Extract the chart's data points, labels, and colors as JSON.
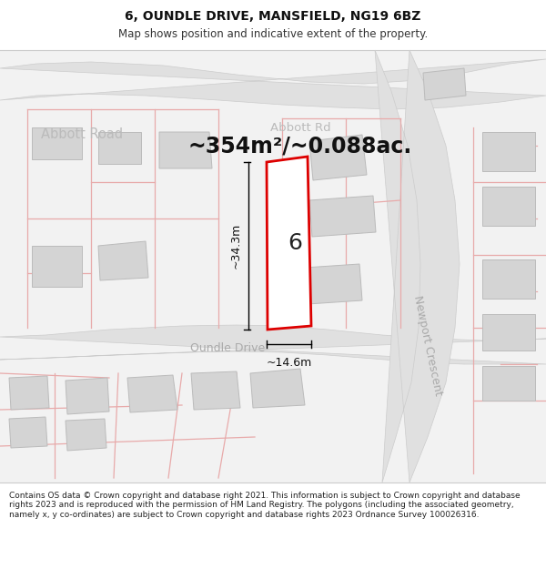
{
  "title": "6, OUNDLE DRIVE, MANSFIELD, NG19 6BZ",
  "subtitle": "Map shows position and indicative extent of the property.",
  "area_text": "~354m²/~0.088ac.",
  "number_label": "6",
  "width_label": "~14.6m",
  "height_label": "~34.3m",
  "footer_text": "Contains OS data © Crown copyright and database right 2021. This information is subject to Crown copyright and database rights 2023 and is reproduced with the permission of HM Land Registry. The polygons (including the associated geometry, namely x, y co-ordinates) are subject to Crown copyright and database rights 2023 Ordnance Survey 100026316.",
  "bg_color": "#f2f2f2",
  "road_color": "#e0e0e0",
  "plot_fill": "#ffffff",
  "plot_edge": "#dd0000",
  "block_fill": "#d4d4d4",
  "block_edge": "#bbbbbb",
  "pink_line": "#e8aaaa",
  "road_label_color": "#aaaaaa",
  "title_color": "#111111",
  "footer_color": "#222222"
}
